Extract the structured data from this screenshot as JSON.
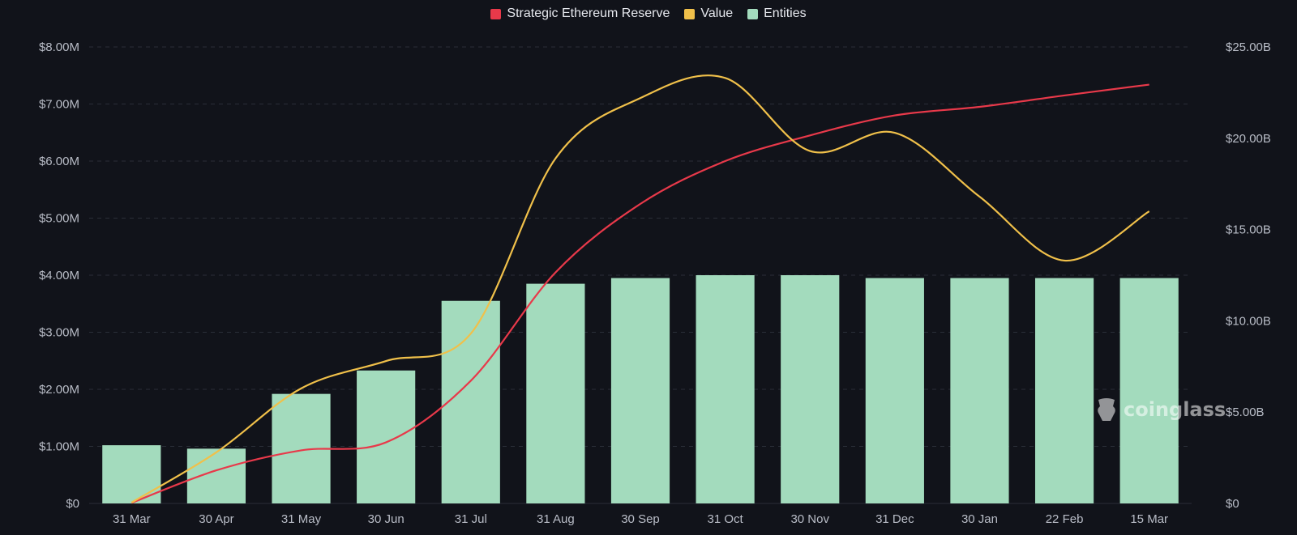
{
  "legend": {
    "items": [
      {
        "label": "Strategic Ethereum Reserve",
        "color": "#e8394a"
      },
      {
        "label": "Value",
        "color": "#f0c04a"
      },
      {
        "label": "Entities",
        "color": "#a3dbbd"
      }
    ]
  },
  "watermark": {
    "text": "coinglass",
    "icon": "coinglass-logo-icon"
  },
  "chart_data": {
    "type": "bar",
    "grid": true,
    "legend_position": "top-center",
    "categories": [
      "31 Mar",
      "30 Apr",
      "31 May",
      "30 Jun",
      "31 Jul",
      "31 Aug",
      "30 Sep",
      "31 Oct",
      "30 Nov",
      "31 Dec",
      "30 Jan",
      "22 Feb",
      "15 Mar"
    ],
    "y_left": {
      "ticks": [
        "$0",
        "$1.00M",
        "$2.00M",
        "$3.00M",
        "$4.00M",
        "$5.00M",
        "$6.00M",
        "$7.00M",
        "$8.00M"
      ],
      "range": [
        0,
        8000000
      ]
    },
    "y_right": {
      "ticks": [
        "$0",
        "$5.00B",
        "$10.00B",
        "$15.00B",
        "$20.00B",
        "$25.00B"
      ],
      "range": [
        0,
        25000000000
      ]
    },
    "series": [
      {
        "name": "Entities",
        "type": "bar",
        "axis": "left",
        "color": "#a3dbbd",
        "values": [
          1020000,
          960000,
          1920000,
          2330000,
          3550000,
          3850000,
          3950000,
          4000000,
          4000000,
          3950000,
          3950000,
          3950000,
          3950000
        ]
      },
      {
        "name": "Strategic Ethereum Reserve",
        "type": "line",
        "axis": "left",
        "color": "#e8394a",
        "values": [
          10000,
          580000,
          930000,
          1070000,
          2150000,
          4050000,
          5250000,
          6000000,
          6450000,
          6800000,
          6950000,
          7150000,
          7340000
        ]
      },
      {
        "name": "Value",
        "type": "line",
        "axis": "right",
        "color": "#f0c04a",
        "values": [
          50000000,
          2800000000,
          6300000000,
          7800000000,
          9300000000,
          18900000000,
          22200000000,
          23300000000,
          19300000000,
          20300000000,
          16800000000,
          13300000000,
          16000000000
        ]
      }
    ]
  }
}
